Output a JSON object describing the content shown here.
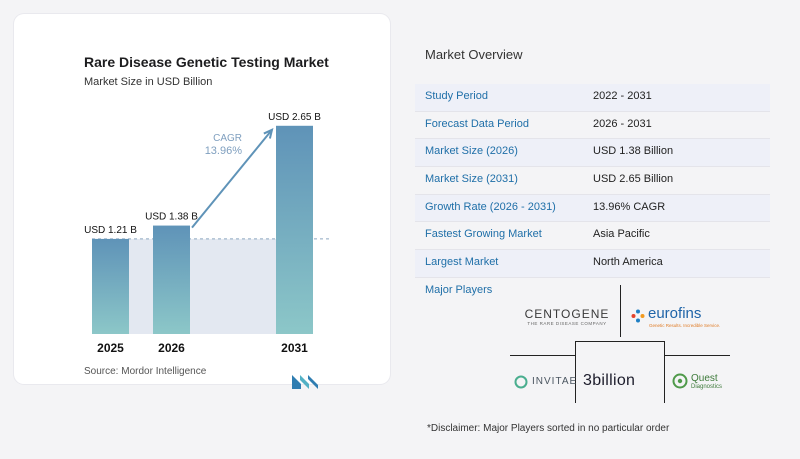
{
  "chart_card": {
    "title": "Rare Disease Genetic Testing Market",
    "subtitle": "Market Size in USD Billion",
    "source": "Source: Mordor Intelligence"
  },
  "chart_data": {
    "type": "bar",
    "title": "Rare Disease Genetic Testing Market",
    "subtitle": "Market Size in USD Billion",
    "categories": [
      "2025",
      "2026",
      "2031"
    ],
    "values": [
      1.21,
      1.38,
      2.65
    ],
    "value_labels": [
      "USD 1.21 B",
      "USD 1.38 B",
      "USD 2.65 B"
    ],
    "annotation": {
      "label": "CAGR",
      "value": "13.96%"
    },
    "ylim": [
      0,
      2.8
    ],
    "grid": false,
    "bar_color_top": "#5f93b8",
    "bar_color_bottom": "#8cc7c8"
  },
  "overview": {
    "title": "Market Overview",
    "rows": [
      {
        "key": "Study Period",
        "value": "2022 - 2031"
      },
      {
        "key": "Forecast Data Period",
        "value": "2026 - 2031"
      },
      {
        "key": "Market Size (2026)",
        "value": "USD 1.38 Billion"
      },
      {
        "key": "Market Size (2031)",
        "value": "USD 2.65 Billion"
      },
      {
        "key": "Growth Rate (2026 - 2031)",
        "value": "13.96% CAGR"
      },
      {
        "key": "Fastest Growing Market",
        "value": "Asia Pacific"
      },
      {
        "key": "Largest Market",
        "value": "North America"
      }
    ],
    "major_players_title": "Major Players",
    "players": {
      "centogene": {
        "name": "CENTOGENE",
        "tagline": "THE RARE DISEASE COMPANY"
      },
      "eurofins": {
        "name": "eurofins",
        "tagline": "Genetic Results. Incredible Service."
      },
      "invitae": {
        "name": "INVITAE"
      },
      "threebillion": {
        "name": "3billion"
      },
      "quest": {
        "name": "Quest",
        "tagline": "Diagnostics"
      }
    },
    "disclaimer": "*Disclaimer: Major Players sorted in no particular order"
  }
}
